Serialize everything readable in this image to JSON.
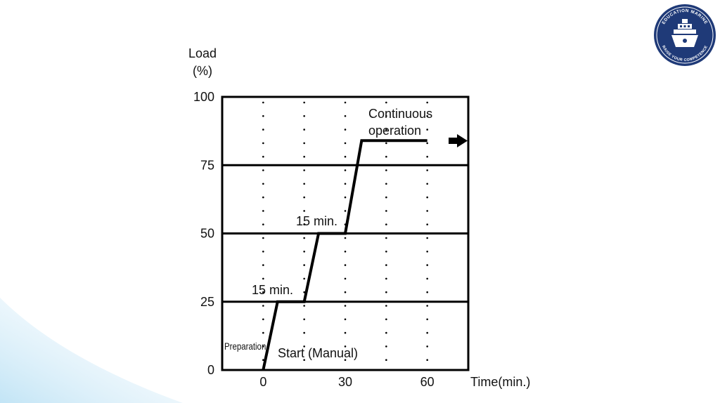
{
  "colors": {
    "line": "#000000",
    "grid_dots": "#000000",
    "logo_navy": "#1f3a78",
    "logo_white": "#ffffff",
    "corner_gradient": "#cfe8f7"
  },
  "logo": {
    "icon": "ship-emblem-icon",
    "top_text": "EDUCATION MARINE",
    "bottom_text": "RAISE YOUR COMPETENCE"
  },
  "chart_data": {
    "type": "line",
    "ylabel_line1": "Load",
    "ylabel_line2": "(%)",
    "xlabel": "Time(min.)",
    "ylim": [
      0,
      100
    ],
    "xlim": [
      -10,
      50
    ],
    "y_ticks": [
      {
        "value": 100,
        "label": "100"
      },
      {
        "value": 75,
        "label": "75"
      },
      {
        "value": 50,
        "label": "50"
      },
      {
        "value": 25,
        "label": "25"
      },
      {
        "value": 0,
        "label": "0"
      }
    ],
    "x_ticks": [
      {
        "value": 0,
        "label": "0"
      },
      {
        "value": 20,
        "label": "30"
      },
      {
        "value": 40,
        "label": "60"
      }
    ],
    "dotted_verticals_x": [
      0,
      10,
      20,
      30,
      40
    ],
    "series": [
      {
        "x": [
          0,
          3.5,
          10,
          13.5,
          20,
          24,
          40
        ],
        "y": [
          0,
          25,
          25,
          50,
          50,
          84,
          84
        ]
      }
    ],
    "annotations": {
      "preparation": "Preparation",
      "start": "Start (Manual)",
      "step1": "15 min.",
      "step2": "15 min.",
      "continuous_line1": "Continuous",
      "continuous_line2": "operation"
    },
    "grid": "horizontal lines at 25/50/75, dotted verticals",
    "legend": "none"
  }
}
